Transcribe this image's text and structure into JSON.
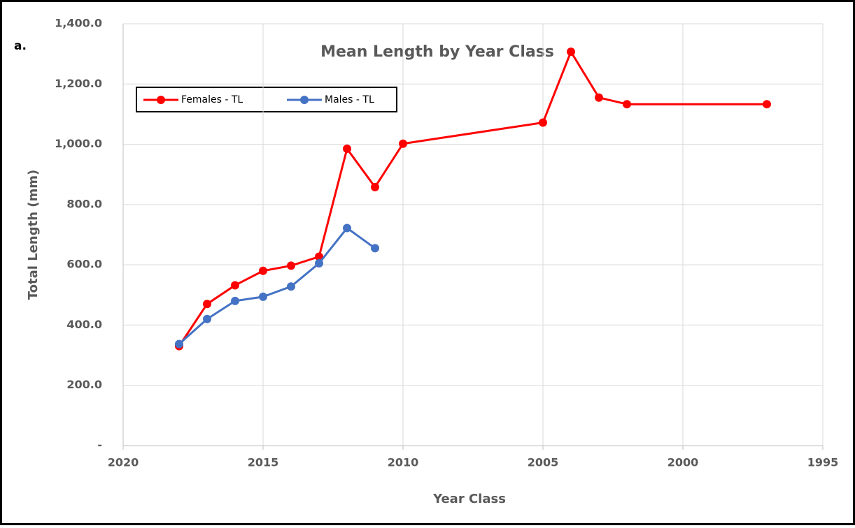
{
  "chart_data": {
    "type": "line",
    "label": "a.",
    "title": "Mean Length by Year Class",
    "x_label": "Year Class",
    "y_label": "Total Length (mm)",
    "x": [
      2018,
      2017,
      2016,
      2015,
      2014,
      2013,
      2012,
      2011,
      2010,
      2005,
      2004,
      2003,
      2002,
      1997
    ],
    "series": [
      {
        "name": "Females - TL",
        "color": "#ff0000",
        "values": [
          330,
          470,
          532,
          580,
          597,
          627,
          985,
          858,
          1002,
          1072,
          1307,
          1155,
          1133,
          1133
        ]
      },
      {
        "name": "Males - TL",
        "color": "#4472c4",
        "values": [
          337,
          420,
          480,
          494,
          528,
          605,
          722,
          655,
          null,
          null,
          null,
          null,
          null,
          null
        ]
      }
    ],
    "xlim": [
      2020,
      1995
    ],
    "xticks": [
      2020,
      2015,
      2010,
      2005,
      2000,
      1995
    ],
    "ylim": [
      0,
      1400
    ],
    "yticks": [
      {
        "value": 0,
        "label": "-"
      },
      {
        "value": 200,
        "label": "200.0"
      },
      {
        "value": 400,
        "label": "400.0"
      },
      {
        "value": 600,
        "label": "600.0"
      },
      {
        "value": 800,
        "label": "800.0"
      },
      {
        "value": 1000,
        "label": "1,000.0"
      },
      {
        "value": 1200,
        "label": "1,200.0"
      },
      {
        "value": 1400,
        "label": "1,400.0"
      }
    ],
    "grid": true
  }
}
